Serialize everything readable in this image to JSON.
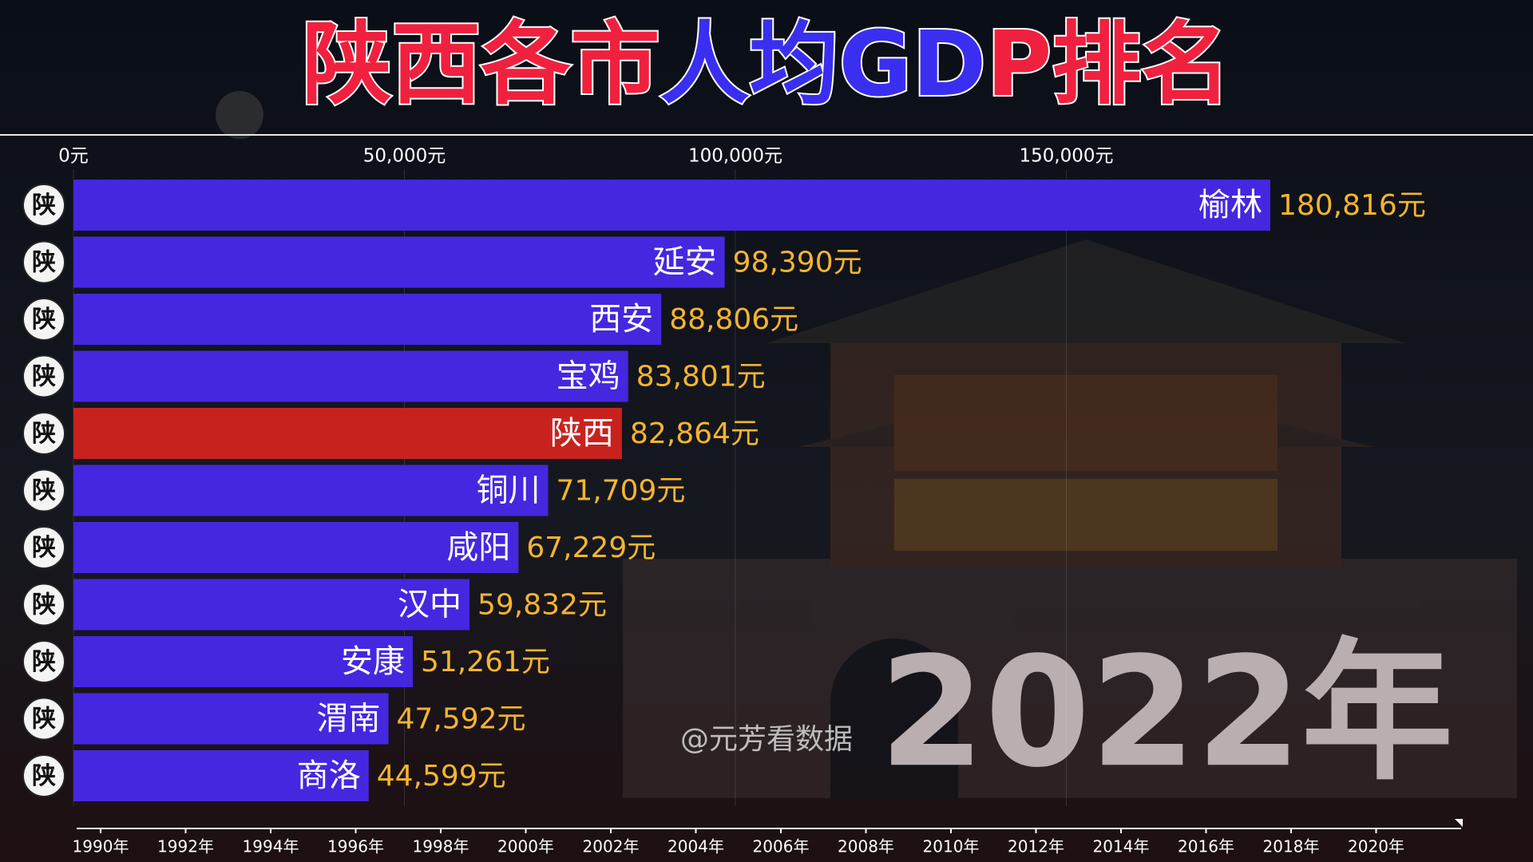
{
  "chart_data": {
    "type": "hbar",
    "title": "陕西各市人均GDP排名",
    "icon_label": "陕",
    "categories": [
      "榆林",
      "延安",
      "西安",
      "宝鸡",
      "陕西",
      "铜川",
      "咸阳",
      "汉中",
      "安康",
      "渭南",
      "商洛"
    ],
    "values": [
      180816,
      98390,
      88806,
      83801,
      82864,
      71709,
      67229,
      59832,
      51261,
      47592,
      44599
    ],
    "value_labels": [
      "180,816元",
      "98,390元",
      "88,806元",
      "83,801元",
      "82,864元",
      "71,709元",
      "67,229元",
      "59,832元",
      "51,261元",
      "47,592元",
      "44,599元"
    ],
    "colors": [
      "#4527e0",
      "#4527e0",
      "#4527e0",
      "#4527e0",
      "#c8221e",
      "#4527e0",
      "#4527e0",
      "#4527e0",
      "#4527e0",
      "#4527e0",
      "#4527e0"
    ],
    "xlim": [
      0,
      200000
    ],
    "xticks": [
      {
        "value": 0,
        "label": "0元"
      },
      {
        "value": 50000,
        "label": "50,000元"
      },
      {
        "value": 100000,
        "label": "100,000元"
      },
      {
        "value": 150000,
        "label": "150,000元"
      }
    ],
    "grid": true,
    "year_label": "2022年",
    "watermark": "@元芳看数据",
    "timeline_lim": [
      1990,
      2022
    ],
    "timeline_ticks": [
      {
        "value": 1990,
        "label": "1990年"
      },
      {
        "value": 1992,
        "label": "1992年"
      },
      {
        "value": 1994,
        "label": "1994年"
      },
      {
        "value": 1996,
        "label": "1996年"
      },
      {
        "value": 1998,
        "label": "1998年"
      },
      {
        "value": 2000,
        "label": "2000年"
      },
      {
        "value": 2002,
        "label": "2002年"
      },
      {
        "value": 2004,
        "label": "2004年"
      },
      {
        "value": 2006,
        "label": "2006年"
      },
      {
        "value": 2008,
        "label": "2008年"
      },
      {
        "value": 2010,
        "label": "2010年"
      },
      {
        "value": 2012,
        "label": "2012年"
      },
      {
        "value": 2014,
        "label": "2014年"
      },
      {
        "value": 2016,
        "label": "2016年"
      },
      {
        "value": 2018,
        "label": "2018年"
      },
      {
        "value": 2020,
        "label": "2020年"
      }
    ]
  }
}
